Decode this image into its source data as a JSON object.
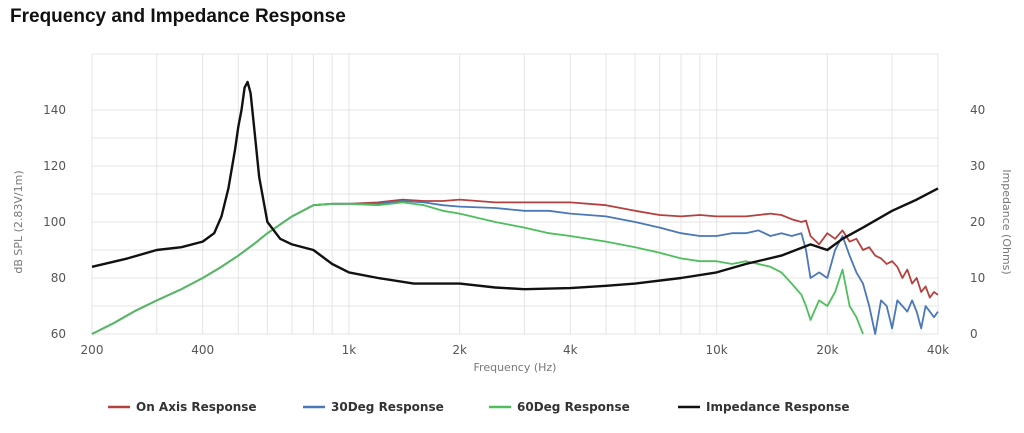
{
  "title": "Frequency and Impedance Response",
  "chart_data": {
    "type": "line",
    "title": "Frequency and Impedance Response",
    "xlabel": "Frequency (Hz)",
    "ylabel_left": "dB SPL (2.83V/1m)",
    "ylabel_right": "Impedance (Ohms)",
    "x_scale": "log",
    "xlim": [
      200,
      40000
    ],
    "ylim_left": [
      60,
      150
    ],
    "ylim_right": [
      0,
      40
    ],
    "x_ticks": [
      200,
      400,
      1000,
      2000,
      4000,
      10000,
      20000,
      40000
    ],
    "x_tick_labels": [
      "200",
      "400",
      "1k",
      "2k",
      "4k",
      "10k",
      "20k",
      "40k"
    ],
    "y_left_ticks": [
      60,
      80,
      100,
      120,
      140
    ],
    "y_right_ticks": [
      0,
      10,
      20,
      30,
      40
    ],
    "grid": true,
    "legend_position": "bottom",
    "series": [
      {
        "name": "On Axis Response",
        "color": "#b5413e",
        "axis": "left",
        "x": [
          200,
          230,
          260,
          300,
          350,
          400,
          450,
          500,
          550,
          600,
          700,
          800,
          900,
          1000,
          1200,
          1400,
          1600,
          1800,
          2000,
          2500,
          3000,
          3500,
          4000,
          5000,
          6000,
          7000,
          8000,
          9000,
          10000,
          11000,
          12000,
          13000,
          14000,
          15000,
          16000,
          17000,
          17500,
          18000,
          19000,
          20000,
          21000,
          22000,
          23000,
          24000,
          25000,
          26000,
          27000,
          28000,
          29000,
          30000,
          31000,
          32000,
          33000,
          34000,
          35000,
          36000,
          37000,
          38000,
          39000,
          40000
        ],
        "y": [
          60,
          64,
          68,
          72,
          76,
          80,
          84,
          88,
          92,
          96,
          102,
          106,
          106.5,
          106.5,
          107,
          108,
          107.5,
          107.5,
          108,
          107,
          107,
          107,
          107,
          106,
          104,
          102.5,
          102,
          102.5,
          102,
          102,
          102,
          102.5,
          103,
          102.5,
          101,
          100,
          100.5,
          95,
          92,
          96,
          94,
          97,
          93,
          94,
          90,
          91,
          88,
          87,
          85,
          86,
          84,
          80,
          83,
          78,
          80,
          75,
          77,
          73,
          75,
          74
        ]
      },
      {
        "name": "30Deg Response",
        "color": "#4a78b8",
        "axis": "left",
        "x": [
          200,
          230,
          260,
          300,
          350,
          400,
          450,
          500,
          550,
          600,
          700,
          800,
          900,
          1000,
          1200,
          1400,
          1600,
          1800,
          2000,
          2500,
          3000,
          3500,
          4000,
          5000,
          6000,
          7000,
          8000,
          9000,
          10000,
          11000,
          12000,
          13000,
          14000,
          15000,
          16000,
          17000,
          17500,
          18000,
          19000,
          20000,
          21000,
          22000,
          23000,
          24000,
          25000,
          26000,
          27000,
          28000,
          29000,
          30000,
          31000,
          32000,
          33000,
          34000,
          35000,
          36000,
          37000,
          38000,
          39000,
          40000
        ],
        "y": [
          60,
          64,
          68,
          72,
          76,
          80,
          84,
          88,
          92,
          96,
          102,
          106,
          106.5,
          106.5,
          106.5,
          107.5,
          107,
          106,
          105.5,
          105,
          104,
          104,
          103,
          102,
          100,
          98,
          96,
          95,
          95,
          96,
          96,
          97,
          95,
          96,
          95,
          96,
          90,
          80,
          82,
          80,
          90,
          95,
          88,
          82,
          78,
          70,
          58,
          72,
          70,
          62,
          72,
          70,
          68,
          72,
          68,
          62,
          70,
          68,
          66,
          68
        ]
      },
      {
        "name": "60Deg Response",
        "color": "#4fbe5d",
        "axis": "left",
        "x": [
          200,
          230,
          260,
          300,
          350,
          400,
          450,
          500,
          550,
          600,
          700,
          800,
          900,
          1000,
          1200,
          1400,
          1600,
          1800,
          2000,
          2500,
          3000,
          3500,
          4000,
          5000,
          6000,
          7000,
          8000,
          9000,
          10000,
          11000,
          12000,
          13000,
          14000,
          15000,
          16000,
          17000,
          17500,
          18000,
          19000,
          20000,
          21000,
          22000,
          23000,
          24000,
          25000
        ],
        "y": [
          60,
          64,
          68,
          72,
          76,
          80,
          84,
          88,
          92,
          96,
          102,
          106,
          106.5,
          106.5,
          106,
          107,
          106,
          104,
          103,
          100,
          98,
          96,
          95,
          93,
          91,
          89,
          87,
          86,
          86,
          85,
          86,
          85,
          84,
          82,
          78,
          74,
          70,
          65,
          72,
          70,
          75,
          83,
          70,
          66,
          60
        ]
      },
      {
        "name": "Impedance Response",
        "color": "#111111",
        "axis": "right",
        "x": [
          200,
          250,
          300,
          350,
          400,
          430,
          450,
          470,
          490,
          500,
          510,
          520,
          530,
          540,
          550,
          570,
          600,
          650,
          700,
          800,
          900,
          1000,
          1200,
          1500,
          2000,
          2500,
          3000,
          4000,
          5000,
          6000,
          8000,
          10000,
          12000,
          15000,
          18000,
          20000,
          22000,
          25000,
          30000,
          35000,
          40000
        ],
        "y": [
          12,
          13.5,
          15,
          15.5,
          16.5,
          18,
          21,
          26,
          33,
          37,
          40,
          44,
          45,
          43,
          38,
          28,
          20,
          17,
          16,
          15,
          12.5,
          11,
          10,
          9,
          9,
          8.3,
          8,
          8.2,
          8.6,
          9,
          10,
          11,
          12.5,
          14,
          16,
          15,
          17,
          19,
          22,
          24,
          26
        ]
      }
    ]
  }
}
